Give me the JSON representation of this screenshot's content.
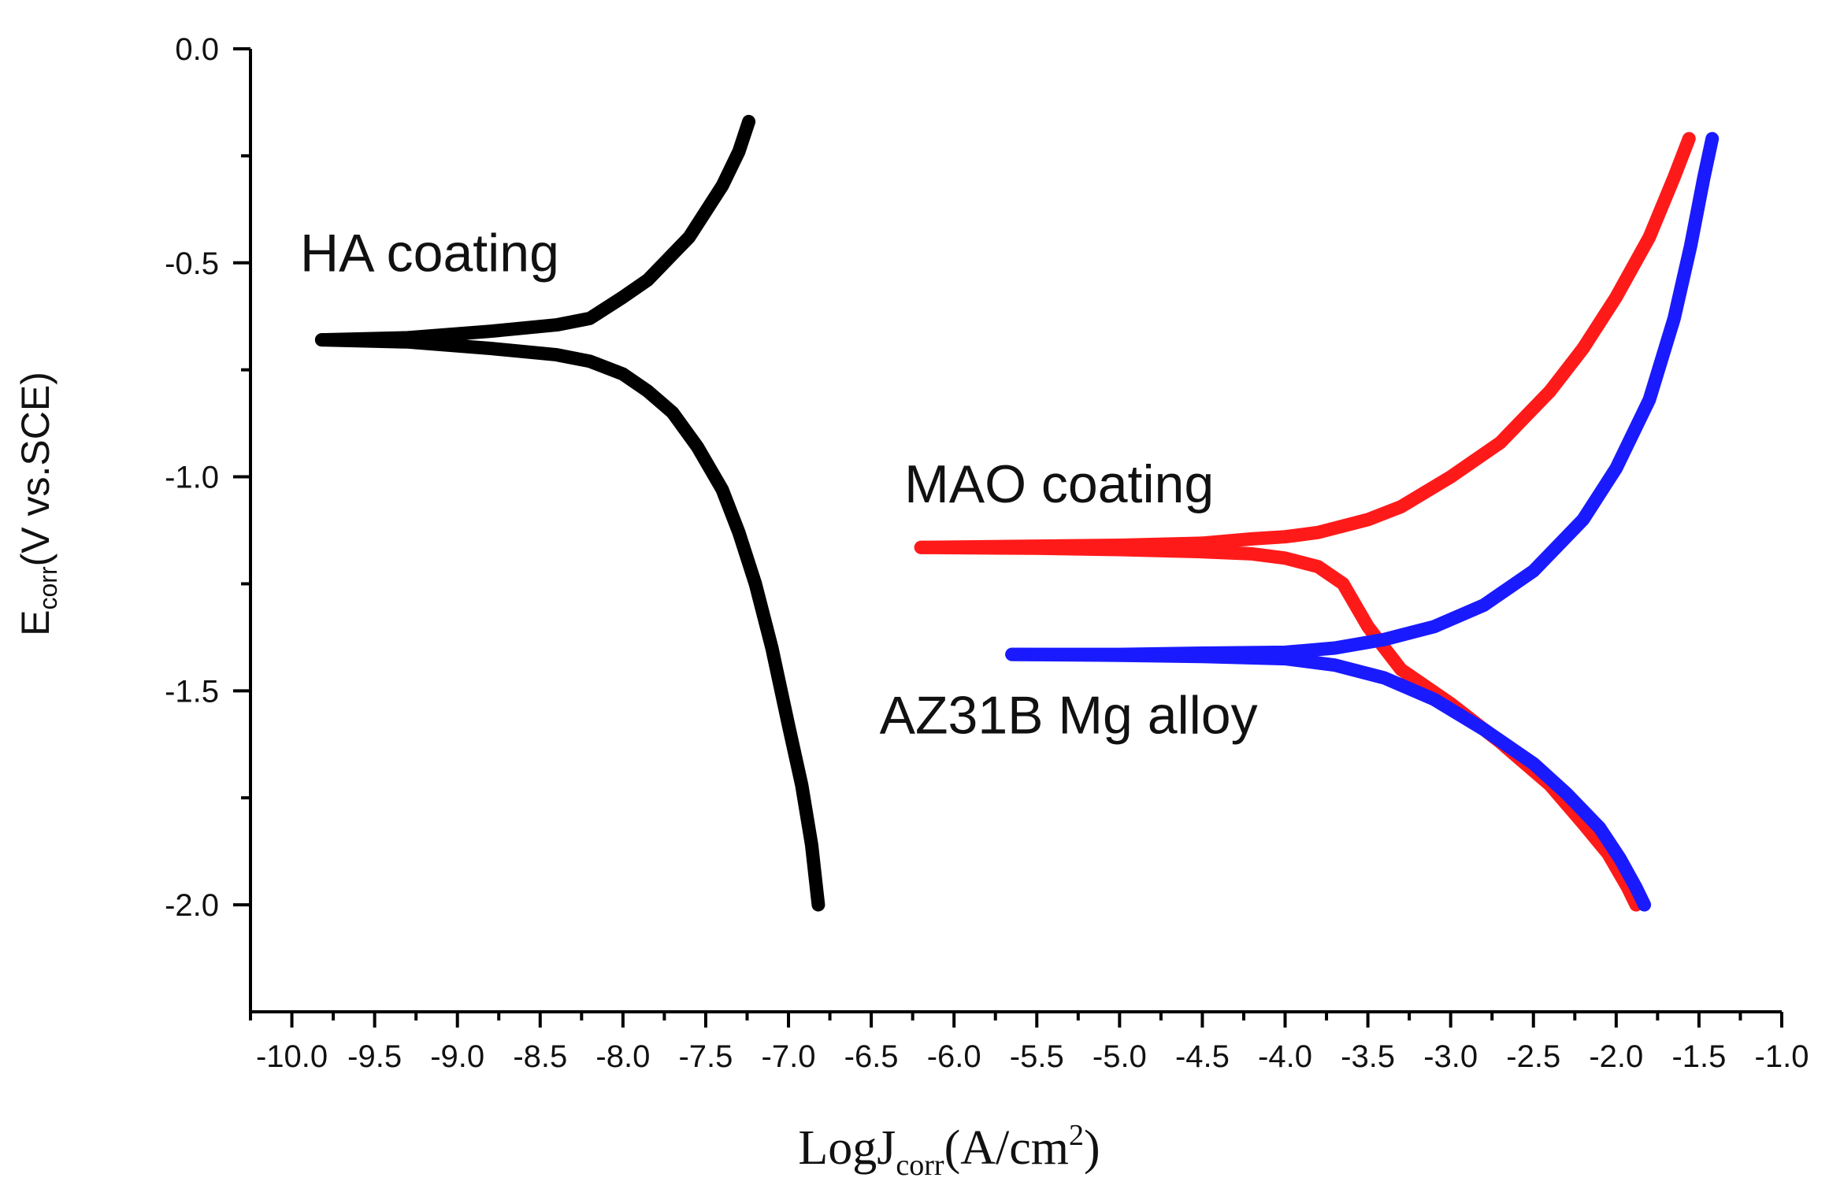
{
  "chart_data": {
    "type": "line",
    "title": "",
    "xlabel": {
      "prefix": "LogJ",
      "subscript": "corr",
      "unit_open": "(A/cm",
      "superscript": "2",
      "unit_close": ")"
    },
    "ylabel": {
      "main": "E",
      "subscript": "corr",
      "unit": "(V vs.SCE)"
    },
    "xlim": [
      -10.25,
      -1.0
    ],
    "ylim": [
      -2.25,
      0.0
    ],
    "x_ticks": [
      -10.0,
      -9.5,
      -9.0,
      -8.5,
      -8.0,
      -7.5,
      -7.0,
      -6.5,
      -6.0,
      -5.5,
      -5.0,
      -4.5,
      -4.0,
      -3.5,
      -3.0,
      -2.5,
      -2.0,
      -1.5,
      -1.0
    ],
    "x_tick_labels": [
      "-10.0",
      "-9.5",
      "-9.0",
      "-8.5",
      "-8.0",
      "-7.5",
      "-7.0",
      "-6.5",
      "-6.0",
      "-5.5",
      "-5.0",
      "-4.5",
      "-4.0",
      "-3.5",
      "-3.0",
      "-2.5",
      "-2.0",
      "-1.5",
      "-1.0"
    ],
    "y_ticks": [
      0.0,
      -0.5,
      -1.0,
      -1.5,
      -2.0
    ],
    "y_tick_labels": [
      "0.0",
      "-0.5",
      "-1.0",
      "-1.5",
      "-2.0"
    ],
    "grid": false,
    "legend": "none",
    "series": [
      {
        "name": "HA coating",
        "color": "#000000",
        "branches": [
          {
            "x": [
              -9.82,
              -9.3,
              -8.8,
              -8.4,
              -8.2,
              -8.0,
              -7.85,
              -7.7,
              -7.6,
              -7.5,
              -7.4,
              -7.3,
              -7.24
            ],
            "y": [
              -0.68,
              -0.675,
              -0.66,
              -0.645,
              -0.63,
              -0.58,
              -0.54,
              -0.48,
              -0.44,
              -0.38,
              -0.32,
              -0.24,
              -0.17
            ]
          },
          {
            "x": [
              -9.82,
              -9.3,
              -8.8,
              -8.4,
              -8.2,
              -8.0,
              -7.85,
              -7.7,
              -7.55,
              -7.4,
              -7.3,
              -7.2,
              -7.1,
              -7.0,
              -6.92,
              -6.86,
              -6.82
            ],
            "y": [
              -0.68,
              -0.685,
              -0.7,
              -0.715,
              -0.73,
              -0.76,
              -0.8,
              -0.85,
              -0.93,
              -1.03,
              -1.13,
              -1.25,
              -1.4,
              -1.58,
              -1.72,
              -1.86,
              -2.0
            ]
          }
        ]
      },
      {
        "name": "MAO coating",
        "color": "#ff1a1a",
        "branches": [
          {
            "x": [
              -6.2,
              -5.5,
              -5.0,
              -4.5,
              -4.2,
              -4.0,
              -3.8,
              -3.5,
              -3.3,
              -3.0,
              -2.7,
              -2.4,
              -2.2,
              -2.0,
              -1.8,
              -1.65,
              -1.56
            ],
            "y": [
              -1.165,
              -1.162,
              -1.16,
              -1.155,
              -1.145,
              -1.14,
              -1.13,
              -1.1,
              -1.07,
              -1.0,
              -0.92,
              -0.8,
              -0.7,
              -0.58,
              -0.44,
              -0.3,
              -0.21
            ]
          },
          {
            "x": [
              -6.2,
              -5.5,
              -5.0,
              -4.5,
              -4.2,
              -4.0,
              -3.8,
              -3.65,
              -3.5,
              -3.3,
              -3.0,
              -2.7,
              -2.4,
              -2.2,
              -2.05,
              -1.93,
              -1.88
            ],
            "y": [
              -1.165,
              -1.167,
              -1.17,
              -1.175,
              -1.18,
              -1.19,
              -1.21,
              -1.25,
              -1.35,
              -1.45,
              -1.53,
              -1.62,
              -1.72,
              -1.81,
              -1.88,
              -1.96,
              -2.0
            ]
          }
        ]
      },
      {
        "name": "AZ31B Mg alloy",
        "color": "#1a1aff",
        "branches": [
          {
            "x": [
              -5.65,
              -5.0,
              -4.5,
              -4.0,
              -3.7,
              -3.4,
              -3.1,
              -2.8,
              -2.5,
              -2.2,
              -2.0,
              -1.8,
              -1.65,
              -1.55,
              -1.47,
              -1.42
            ],
            "y": [
              -1.415,
              -1.415,
              -1.412,
              -1.41,
              -1.4,
              -1.38,
              -1.35,
              -1.3,
              -1.22,
              -1.1,
              -0.98,
              -0.82,
              -0.63,
              -0.46,
              -0.3,
              -0.21
            ]
          },
          {
            "x": [
              -5.65,
              -5.0,
              -4.5,
              -4.0,
              -3.7,
              -3.4,
              -3.1,
              -2.8,
              -2.5,
              -2.3,
              -2.1,
              -1.98,
              -1.88,
              -1.83
            ],
            "y": [
              -1.415,
              -1.417,
              -1.42,
              -1.425,
              -1.44,
              -1.47,
              -1.52,
              -1.59,
              -1.67,
              -1.74,
              -1.82,
              -1.89,
              -1.96,
              -2.0
            ]
          }
        ]
      }
    ],
    "annotations": [
      {
        "text": "HA coating",
        "x": -9.95,
        "y": -0.52,
        "anchor": "start"
      },
      {
        "text": "MAO coating",
        "x": -6.3,
        "y": -1.06,
        "anchor": "start"
      },
      {
        "text": "AZ31B Mg alloy",
        "x": -6.45,
        "y": -1.6,
        "anchor": "start"
      }
    ]
  }
}
